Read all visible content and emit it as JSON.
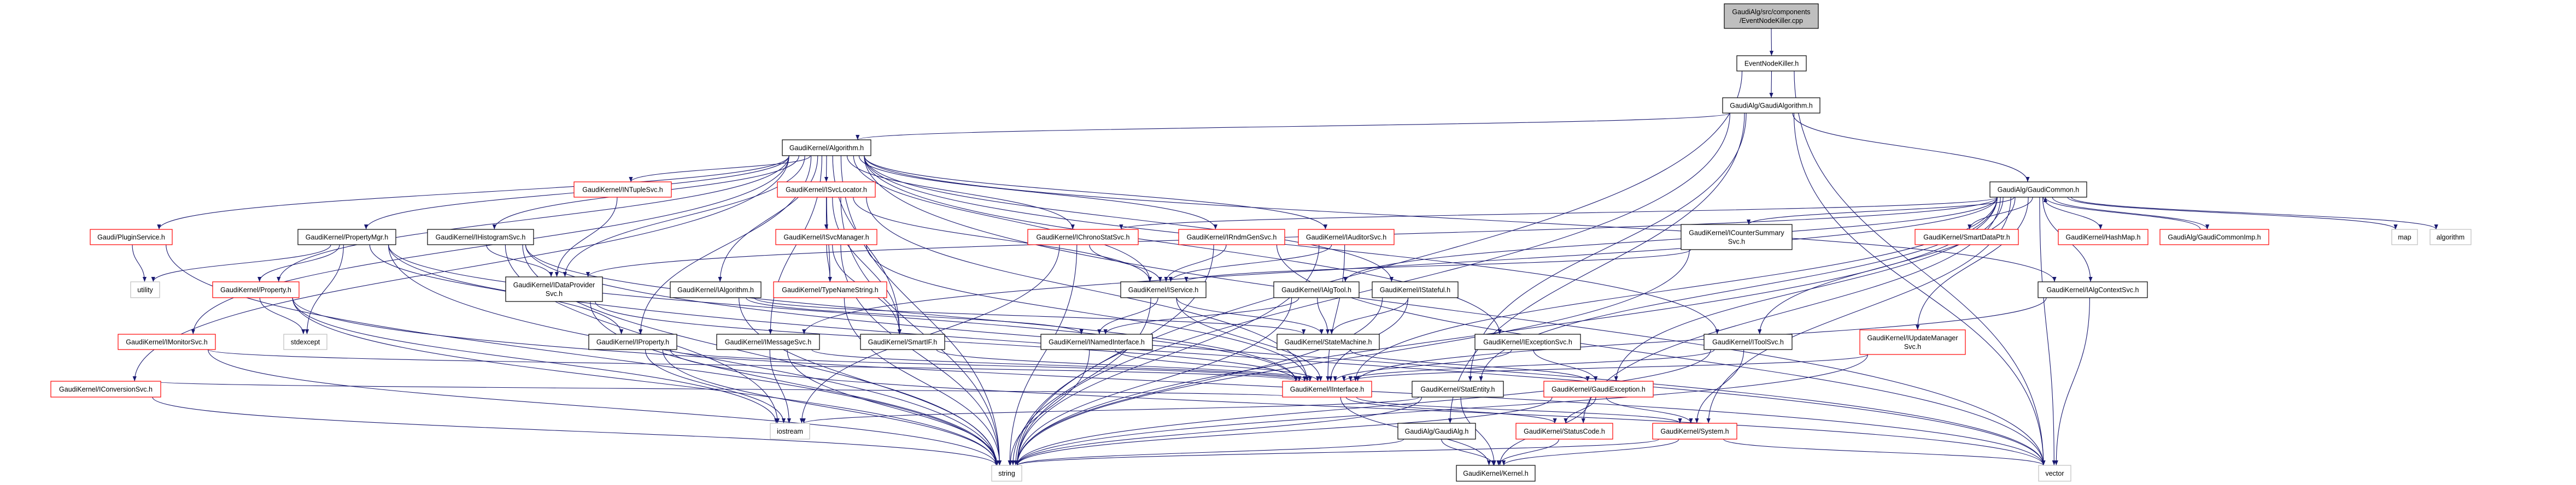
{
  "graph": {
    "edge_color": "#191970",
    "border_colors": {
      "documented": "#000000",
      "truncated": "#ff0000",
      "external": "#bfbfbf",
      "root_fill": "#bfbfbf"
    },
    "nodes": [
      {
        "id": "root",
        "kind": "root",
        "lines": [
          "GaudiAlg/src/components",
          "/EventNodeKiller.cpp"
        ]
      },
      {
        "id": "enk",
        "kind": "documented",
        "lines": [
          "EventNodeKiller.h"
        ]
      },
      {
        "id": "galgo",
        "kind": "documented",
        "lines": [
          "GaudiAlg/GaudiAlgorithm.h"
        ]
      },
      {
        "id": "algo",
        "kind": "documented",
        "lines": [
          "GaudiKernel/Algorithm.h"
        ]
      },
      {
        "id": "gcommon",
        "kind": "documented",
        "lines": [
          "GaudiAlg/GaudiCommon.h"
        ]
      },
      {
        "id": "ntuple",
        "kind": "truncated",
        "lines": [
          "GaudiKernel/INTupleSvc.h"
        ]
      },
      {
        "id": "svcloc",
        "kind": "truncated",
        "lines": [
          "GaudiKernel/ISvcLocator.h"
        ]
      },
      {
        "id": "plugin",
        "kind": "truncated",
        "lines": [
          "Gaudi/PluginService.h"
        ]
      },
      {
        "id": "propmgr",
        "kind": "documented",
        "lines": [
          "GaudiKernel/PropertyMgr.h"
        ]
      },
      {
        "id": "histo",
        "kind": "documented",
        "lines": [
          "GaudiKernel/IHistogramSvc.h"
        ]
      },
      {
        "id": "svcmgr",
        "kind": "truncated",
        "lines": [
          "GaudiKernel/ISvcManager.h"
        ]
      },
      {
        "id": "chrono",
        "kind": "truncated",
        "lines": [
          "GaudiKernel/IChronoStatSvc.h"
        ]
      },
      {
        "id": "rndm",
        "kind": "truncated",
        "lines": [
          "GaudiKernel/IRndmGenSvc.h"
        ]
      },
      {
        "id": "auditor",
        "kind": "truncated",
        "lines": [
          "GaudiKernel/IAuditorSvc.h"
        ]
      },
      {
        "id": "counter",
        "kind": "documented",
        "lines": [
          "GaudiKernel/ICounterSummary",
          "Svc.h"
        ]
      },
      {
        "id": "smartdp",
        "kind": "truncated",
        "lines": [
          "GaudiKernel/SmartDataPtr.h"
        ]
      },
      {
        "id": "hashmap",
        "kind": "truncated",
        "lines": [
          "GaudiKernel/HashMap.h"
        ]
      },
      {
        "id": "gcimp",
        "kind": "truncated",
        "lines": [
          "GaudiAlg/GaudiCommonImp.h"
        ]
      },
      {
        "id": "map",
        "kind": "external",
        "lines": [
          "map"
        ]
      },
      {
        "id": "algorithm",
        "kind": "external",
        "lines": [
          "algorithm"
        ]
      },
      {
        "id": "utility",
        "kind": "external",
        "lines": [
          "utility"
        ]
      },
      {
        "id": "property",
        "kind": "truncated",
        "lines": [
          "GaudiKernel/Property.h"
        ]
      },
      {
        "id": "dataprov",
        "kind": "documented",
        "lines": [
          "GaudiKernel/IDataProvider",
          "Svc.h"
        ]
      },
      {
        "id": "ialgo",
        "kind": "documented",
        "lines": [
          "GaudiKernel/IAlgorithm.h"
        ]
      },
      {
        "id": "typename",
        "kind": "truncated",
        "lines": [
          "GaudiKernel/TypeNameString.h"
        ]
      },
      {
        "id": "iservice",
        "kind": "documented",
        "lines": [
          "GaudiKernel/IService.h"
        ]
      },
      {
        "id": "ialgtool",
        "kind": "documented",
        "lines": [
          "GaudiKernel/IAlgTool.h"
        ]
      },
      {
        "id": "istateful",
        "kind": "documented",
        "lines": [
          "GaudiKernel/IStateful.h"
        ]
      },
      {
        "id": "algctx",
        "kind": "documented",
        "lines": [
          "GaudiKernel/IAlgContextSvc.h"
        ]
      },
      {
        "id": "monitor",
        "kind": "truncated",
        "lines": [
          "GaudiKernel/IMonitorSvc.h"
        ]
      },
      {
        "id": "stdexcept",
        "kind": "external",
        "lines": [
          "stdexcept"
        ]
      },
      {
        "id": "iproperty",
        "kind": "documented",
        "lines": [
          "GaudiKernel/IProperty.h"
        ]
      },
      {
        "id": "msgsvc",
        "kind": "documented",
        "lines": [
          "GaudiKernel/IMessageSvc.h"
        ]
      },
      {
        "id": "smartif",
        "kind": "documented",
        "lines": [
          "GaudiKernel/SmartIF.h"
        ]
      },
      {
        "id": "named",
        "kind": "documented",
        "lines": [
          "GaudiKernel/INamedInterface.h"
        ]
      },
      {
        "id": "statemach",
        "kind": "documented",
        "lines": [
          "GaudiKernel/StateMachine.h"
        ]
      },
      {
        "id": "excsvc",
        "kind": "documented",
        "lines": [
          "GaudiKernel/IExceptionSvc.h"
        ]
      },
      {
        "id": "toolsvc",
        "kind": "documented",
        "lines": [
          "GaudiKernel/IToolSvc.h"
        ]
      },
      {
        "id": "updmgr",
        "kind": "truncated",
        "lines": [
          "GaudiKernel/IUpdateManager",
          "Svc.h"
        ]
      },
      {
        "id": "conv",
        "kind": "truncated",
        "lines": [
          "GaudiKernel/IConversionSvc.h"
        ]
      },
      {
        "id": "iinterface",
        "kind": "truncated",
        "lines": [
          "GaudiKernel/IInterface.h"
        ]
      },
      {
        "id": "statentity",
        "kind": "documented",
        "lines": [
          "GaudiKernel/StatEntity.h"
        ]
      },
      {
        "id": "gexc",
        "kind": "truncated",
        "lines": [
          "GaudiKernel/GaudiException.h"
        ]
      },
      {
        "id": "iostream",
        "kind": "external",
        "lines": [
          "iostream"
        ]
      },
      {
        "id": "gaudialg",
        "kind": "documented",
        "lines": [
          "GaudiAlg/GaudiAlg.h"
        ]
      },
      {
        "id": "statuscode",
        "kind": "truncated",
        "lines": [
          "GaudiKernel/StatusCode.h"
        ]
      },
      {
        "id": "system",
        "kind": "truncated",
        "lines": [
          "GaudiKernel/System.h"
        ]
      },
      {
        "id": "string",
        "kind": "external",
        "lines": [
          "string"
        ]
      },
      {
        "id": "kernel",
        "kind": "documented",
        "lines": [
          "GaudiKernel/Kernel.h"
        ]
      },
      {
        "id": "vector",
        "kind": "external",
        "lines": [
          "vector"
        ]
      }
    ],
    "edges": [
      [
        "root",
        "enk"
      ],
      [
        "enk",
        "galgo"
      ],
      [
        "enk",
        "string"
      ],
      [
        "enk",
        "vector"
      ],
      [
        "galgo",
        "algo"
      ],
      [
        "galgo",
        "gcommon"
      ],
      [
        "galgo",
        "vector"
      ],
      [
        "galgo",
        "string"
      ],
      [
        "galgo",
        "gaudialg"
      ],
      [
        "galgo",
        "statentity"
      ],
      [
        "algo",
        "plugin"
      ],
      [
        "algo",
        "propmgr"
      ],
      [
        "algo",
        "histo"
      ],
      [
        "algo",
        "property"
      ],
      [
        "algo",
        "monitor"
      ],
      [
        "algo",
        "conv"
      ],
      [
        "algo",
        "dataprov"
      ],
      [
        "algo",
        "ntuple"
      ],
      [
        "algo",
        "svcloc"
      ],
      [
        "algo",
        "ialgo"
      ],
      [
        "algo",
        "msgsvc"
      ],
      [
        "algo",
        "chrono"
      ],
      [
        "algo",
        "rndm"
      ],
      [
        "algo",
        "auditor"
      ],
      [
        "algo",
        "iservice"
      ],
      [
        "algo",
        "istateful"
      ],
      [
        "algo",
        "excsvc"
      ],
      [
        "algo",
        "toolsvc"
      ],
      [
        "algo",
        "algctx"
      ],
      [
        "algo",
        "string"
      ],
      [
        "algo",
        "vector"
      ],
      [
        "algo",
        "smartif"
      ],
      [
        "algo",
        "iproperty"
      ],
      [
        "plugin",
        "utility"
      ],
      [
        "plugin",
        "string"
      ],
      [
        "propmgr",
        "utility"
      ],
      [
        "propmgr",
        "property"
      ],
      [
        "propmgr",
        "stdexcept"
      ],
      [
        "propmgr",
        "string"
      ],
      [
        "propmgr",
        "vector"
      ],
      [
        "propmgr",
        "iproperty"
      ],
      [
        "propmgr",
        "iinterface"
      ],
      [
        "property",
        "stdexcept"
      ],
      [
        "property",
        "string"
      ],
      [
        "property",
        "vector"
      ],
      [
        "property",
        "iostream"
      ],
      [
        "monitor",
        "iinterface"
      ],
      [
        "monitor",
        "string"
      ],
      [
        "conv",
        "string"
      ],
      [
        "conv",
        "iinterface"
      ],
      [
        "histo",
        "dataprov"
      ],
      [
        "histo",
        "string"
      ],
      [
        "histo",
        "iinterface"
      ],
      [
        "histo",
        "vector"
      ],
      [
        "histo",
        "iostream"
      ],
      [
        "dataprov",
        "iinterface"
      ],
      [
        "dataprov",
        "string"
      ],
      [
        "ntuple",
        "dataprov"
      ],
      [
        "svcloc",
        "svcmgr"
      ],
      [
        "svcloc",
        "typename"
      ],
      [
        "svcloc",
        "smartif"
      ],
      [
        "svcloc",
        "iinterface"
      ],
      [
        "svcloc",
        "string"
      ],
      [
        "svcloc",
        "iservice"
      ],
      [
        "svcmgr",
        "typename"
      ],
      [
        "svcmgr",
        "smartif"
      ],
      [
        "svcmgr",
        "iinterface"
      ],
      [
        "svcmgr",
        "string"
      ],
      [
        "typename",
        "string"
      ],
      [
        "ialgo",
        "named"
      ],
      [
        "ialgo",
        "statemach"
      ],
      [
        "ialgo",
        "string"
      ],
      [
        "iproperty",
        "iostream"
      ],
      [
        "iproperty",
        "string"
      ],
      [
        "iproperty",
        "vector"
      ],
      [
        "iproperty",
        "iinterface"
      ],
      [
        "msgsvc",
        "iostream"
      ],
      [
        "msgsvc",
        "string"
      ],
      [
        "msgsvc",
        "iinterface"
      ],
      [
        "smartif",
        "iinterface"
      ],
      [
        "named",
        "iinterface"
      ],
      [
        "named",
        "string"
      ],
      [
        "chrono",
        "iservice"
      ],
      [
        "chrono",
        "string"
      ],
      [
        "chrono",
        "iostream"
      ],
      [
        "rndm",
        "iservice"
      ],
      [
        "rndm",
        "string"
      ],
      [
        "rndm",
        "vector"
      ],
      [
        "auditor",
        "iservice"
      ],
      [
        "auditor",
        "string"
      ],
      [
        "auditor",
        "iinterface"
      ],
      [
        "iservice",
        "named"
      ],
      [
        "iservice",
        "statemach"
      ],
      [
        "iservice",
        "iinterface"
      ],
      [
        "iservice",
        "string"
      ],
      [
        "ialgtool",
        "named"
      ],
      [
        "ialgtool",
        "statemach"
      ],
      [
        "ialgtool",
        "string"
      ],
      [
        "istateful",
        "statemach"
      ],
      [
        "istateful",
        "iinterface"
      ],
      [
        "istateful",
        "string"
      ],
      [
        "statemach",
        "gexc"
      ],
      [
        "excsvc",
        "iinterface"
      ],
      [
        "excsvc",
        "gexc"
      ],
      [
        "iinterface",
        "kernel"
      ],
      [
        "iinterface",
        "statuscode"
      ],
      [
        "iinterface",
        "system"
      ],
      [
        "statentity",
        "kernel"
      ],
      [
        "statentity",
        "iostream"
      ],
      [
        "statentity",
        "string"
      ],
      [
        "gexc",
        "statuscode"
      ],
      [
        "gexc",
        "kernel"
      ],
      [
        "gexc",
        "system"
      ],
      [
        "gexc",
        "string"
      ],
      [
        "gaudialg",
        "kernel"
      ],
      [
        "gaudialg",
        "string"
      ],
      [
        "statuscode",
        "kernel"
      ],
      [
        "system",
        "string"
      ],
      [
        "system",
        "vector"
      ],
      [
        "system",
        "kernel"
      ],
      [
        "gcommon",
        "counter"
      ],
      [
        "gcommon",
        "smartdp"
      ],
      [
        "gcommon",
        "hashmap"
      ],
      [
        "gcommon",
        "gcimp"
      ],
      [
        "gcommon",
        "map"
      ],
      [
        "gcommon",
        "algorithm"
      ],
      [
        "gcommon",
        "algctx"
      ],
      [
        "gcommon",
        "updmgr"
      ],
      [
        "gcommon",
        "toolsvc"
      ],
      [
        "gcommon",
        "system"
      ],
      [
        "gcommon",
        "statentity"
      ],
      [
        "gcommon",
        "gexc"
      ],
      [
        "gcommon",
        "dataprov"
      ],
      [
        "gcommon",
        "chrono"
      ],
      [
        "gcommon",
        "ialgtool"
      ],
      [
        "gcommon",
        "string"
      ],
      [
        "gcommon",
        "vector"
      ],
      [
        "gcommon",
        "statuscode"
      ],
      [
        "gcommon",
        "iinterface"
      ],
      [
        "gcommon",
        "msgsvc"
      ],
      [
        "gcimp",
        "gcommon"
      ],
      [
        "counter",
        "iservice"
      ],
      [
        "counter",
        "string"
      ],
      [
        "algctx",
        "iinterface"
      ],
      [
        "algctx",
        "vector"
      ],
      [
        "toolsvc",
        "system"
      ],
      [
        "toolsvc",
        "iinterface"
      ],
      [
        "toolsvc",
        "string"
      ],
      [
        "updmgr",
        "iinterface"
      ],
      [
        "updmgr",
        "string"
      ]
    ]
  }
}
